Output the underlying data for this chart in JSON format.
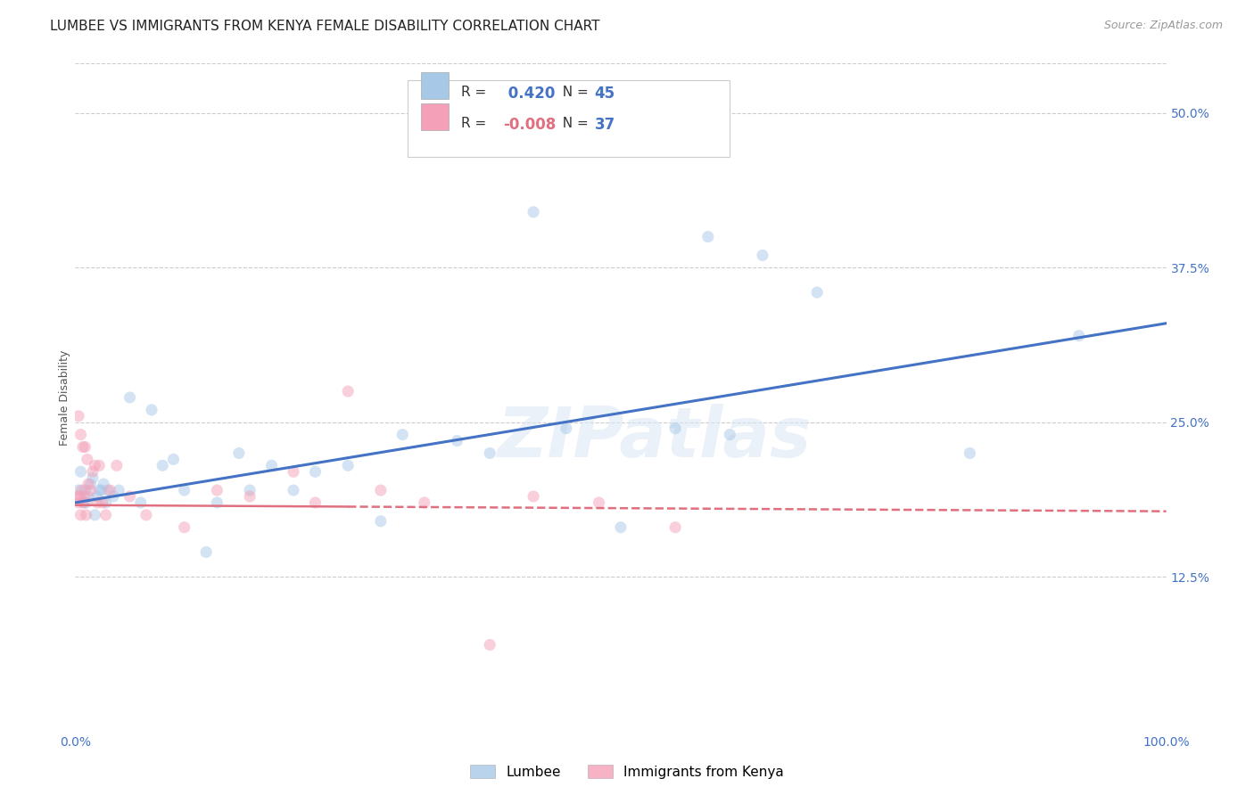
{
  "title": "LUMBEE VS IMMIGRANTS FROM KENYA FEMALE DISABILITY CORRELATION CHART",
  "source": "Source: ZipAtlas.com",
  "ylabel": "Female Disability",
  "xlim": [
    0.0,
    1.0
  ],
  "ylim": [
    0.0,
    0.54
  ],
  "xtick_labels": [
    "0.0%",
    "",
    "",
    "",
    "100.0%"
  ],
  "xtick_vals": [
    0.0,
    0.25,
    0.5,
    0.75,
    1.0
  ],
  "ytick_labels": [
    "12.5%",
    "25.0%",
    "37.5%",
    "50.0%"
  ],
  "ytick_vals": [
    0.125,
    0.25,
    0.375,
    0.5
  ],
  "watermark": "ZIPatlas",
  "legend_R_lumbee": "0.420",
  "legend_N_lumbee": "45",
  "legend_R_kenya": "-0.008",
  "legend_N_kenya": "37",
  "lumbee_color": "#a8c8e8",
  "kenya_color": "#f4a0b8",
  "trendline_lumbee_color": "#4472c4",
  "trendline_kenya_color": "#e07080",
  "lumbee_x": [
    0.003,
    0.005,
    0.007,
    0.009,
    0.01,
    0.012,
    0.014,
    0.016,
    0.018,
    0.02,
    0.022,
    0.024,
    0.026,
    0.028,
    0.03,
    0.035,
    0.04,
    0.05,
    0.06,
    0.07,
    0.08,
    0.09,
    0.1,
    0.12,
    0.13,
    0.15,
    0.16,
    0.18,
    0.2,
    0.22,
    0.25,
    0.28,
    0.3,
    0.35,
    0.38,
    0.42,
    0.45,
    0.5,
    0.55,
    0.58,
    0.6,
    0.63,
    0.68,
    0.82,
    0.92
  ],
  "lumbee_y": [
    0.195,
    0.21,
    0.185,
    0.195,
    0.185,
    0.19,
    0.2,
    0.205,
    0.175,
    0.19,
    0.195,
    0.195,
    0.2,
    0.185,
    0.195,
    0.19,
    0.195,
    0.27,
    0.185,
    0.26,
    0.215,
    0.22,
    0.195,
    0.145,
    0.185,
    0.225,
    0.195,
    0.215,
    0.195,
    0.21,
    0.215,
    0.17,
    0.24,
    0.235,
    0.225,
    0.42,
    0.245,
    0.165,
    0.245,
    0.4,
    0.24,
    0.385,
    0.355,
    0.225,
    0.32
  ],
  "kenya_x": [
    0.002,
    0.003,
    0.004,
    0.005,
    0.006,
    0.008,
    0.009,
    0.01,
    0.012,
    0.014,
    0.016,
    0.018,
    0.02,
    0.022,
    0.025,
    0.028,
    0.032,
    0.038,
    0.05,
    0.065,
    0.1,
    0.13,
    0.16,
    0.2,
    0.22,
    0.25,
    0.28,
    0.32,
    0.38,
    0.42,
    0.48,
    0.55,
    0.003,
    0.005,
    0.007,
    0.009,
    0.011
  ],
  "kenya_y": [
    0.19,
    0.185,
    0.19,
    0.175,
    0.195,
    0.185,
    0.19,
    0.175,
    0.2,
    0.195,
    0.21,
    0.215,
    0.185,
    0.215,
    0.185,
    0.175,
    0.195,
    0.215,
    0.19,
    0.175,
    0.165,
    0.195,
    0.19,
    0.21,
    0.185,
    0.275,
    0.195,
    0.185,
    0.07,
    0.19,
    0.185,
    0.165,
    0.255,
    0.24,
    0.23,
    0.23,
    0.22
  ],
  "background_color": "#ffffff",
  "grid_color": "#cccccc",
  "title_fontsize": 11,
  "axis_label_fontsize": 9,
  "tick_fontsize": 10,
  "marker_size": 90,
  "marker_alpha": 0.5,
  "trendline_lw_lumbee": 2.2,
  "trendline_lw_kenya": 1.8
}
